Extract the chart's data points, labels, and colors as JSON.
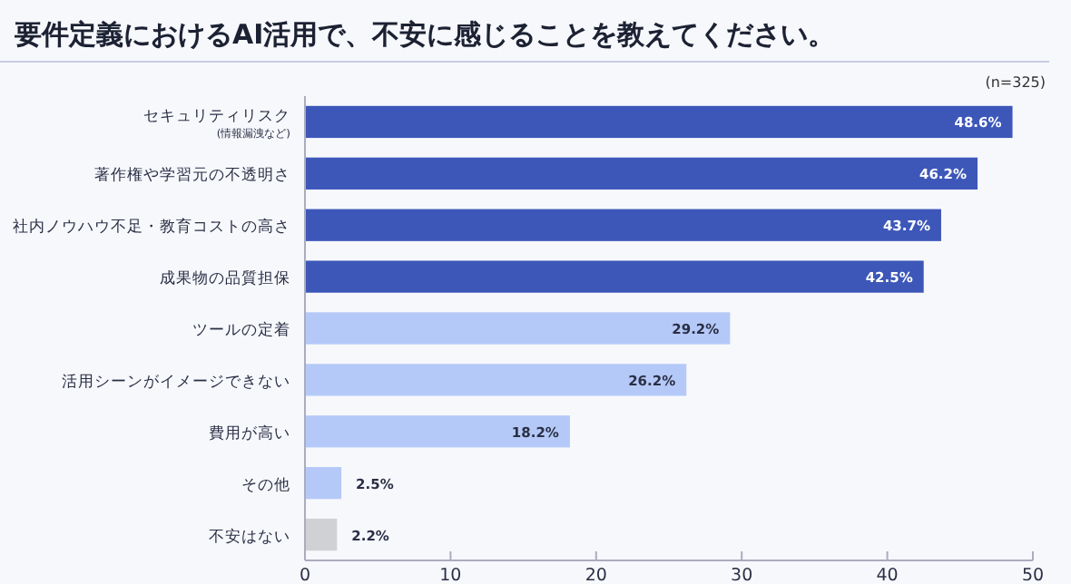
{
  "chart_data": {
    "type": "bar",
    "orientation": "horizontal",
    "title": "要件定義におけるAI活用で、不安に感じることを教えてください。",
    "annotations": [
      "(n=325)"
    ],
    "categories": [
      "セキュリティリスク\n(情報漏洩など)",
      "著作権や学習元の不透明さ",
      "社内ノウハウ不足・教育コストの高さ",
      "成果物の品質担保",
      "ツールの定着",
      "活用シーンがイメージできない",
      "費用が高い",
      "その他",
      "不安はない"
    ],
    "values": [
      48.6,
      46.2,
      43.7,
      42.5,
      29.2,
      26.2,
      18.2,
      2.5,
      2.2
    ],
    "colors": [
      "#3d57b9",
      "#3d57b9",
      "#3d57b9",
      "#3d57b9",
      "#b5c9f8",
      "#b5c9f8",
      "#b5c9f8",
      "#b5c9f8",
      "#cfd1d5"
    ],
    "value_labels": [
      "48.6%",
      "46.2%",
      "43.7%",
      "42.5%",
      "29.2%",
      "26.2%",
      "18.2%",
      "2.5%",
      "2.2%"
    ],
    "xlim": [
      0,
      50
    ],
    "xticks": [
      0,
      10,
      20,
      30,
      40,
      50
    ],
    "grid": false
  }
}
